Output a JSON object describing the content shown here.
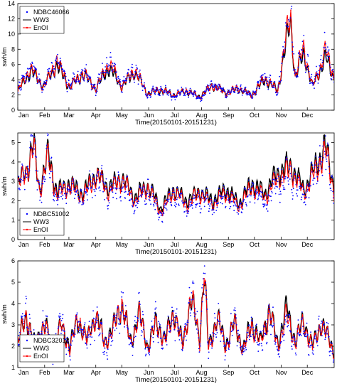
{
  "chart_data": [
    {
      "type": "line",
      "panel": "top",
      "station": "NDBC46066",
      "xlabel": "Time(20150101-20151231)",
      "ylabel": "swh/m",
      "ylim": [
        0,
        14
      ],
      "yticks": [
        0,
        2,
        4,
        6,
        8,
        10,
        12,
        14
      ],
      "x_tick_labels": [
        "Jan",
        "Feb",
        "Mar",
        "Apr",
        "May",
        "Jun",
        "Jul",
        "Aug",
        "Sep",
        "Oct",
        "Nov",
        "Dec"
      ],
      "legend": [
        "NDBC46066",
        "WW3",
        "EnOI"
      ],
      "legend_position": "top-left",
      "series": [
        {
          "name": "NDBC46066",
          "style": "dots",
          "color": "#0000ff",
          "x": [
            0,
            15,
            30,
            45,
            60,
            75,
            90,
            105,
            120,
            135,
            150,
            165,
            180,
            195,
            210,
            225,
            240,
            255,
            270,
            285,
            300,
            310,
            315,
            320,
            330,
            340,
            350,
            355,
            365
          ],
          "y": [
            2.5,
            5.8,
            3.0,
            6.8,
            3.0,
            5.2,
            2.8,
            6.5,
            3.2,
            5.5,
            2.0,
            2.8,
            1.8,
            2.6,
            1.6,
            3.4,
            2.2,
            2.9,
            1.9,
            4.5,
            2.4,
            10.5,
            13.8,
            4.5,
            8.6,
            3.0,
            6.2,
            8.0,
            4.5
          ]
        },
        {
          "name": "WW3",
          "style": "line",
          "color": "#000000",
          "x": [
            0,
            15,
            30,
            45,
            60,
            75,
            90,
            105,
            120,
            135,
            150,
            165,
            180,
            195,
            210,
            225,
            240,
            255,
            270,
            285,
            300,
            310,
            315,
            320,
            330,
            340,
            350,
            355,
            365
          ],
          "y": [
            2.4,
            5.2,
            3.1,
            6.0,
            3.0,
            4.8,
            2.9,
            5.6,
            3.1,
            5.0,
            2.2,
            2.7,
            2.0,
            2.5,
            1.8,
            3.2,
            2.3,
            2.8,
            2.0,
            4.0,
            2.6,
            9.2,
            11.5,
            4.3,
            7.5,
            3.1,
            5.6,
            7.0,
            4.2
          ]
        },
        {
          "name": "EnOI",
          "style": "line-dots",
          "color": "#ff0000",
          "x": [
            0,
            15,
            30,
            45,
            60,
            75,
            90,
            105,
            120,
            135,
            150,
            165,
            180,
            195,
            210,
            225,
            240,
            255,
            270,
            285,
            300,
            310,
            315,
            320,
            330,
            340,
            350,
            355,
            365
          ],
          "y": [
            2.5,
            5.6,
            3.0,
            6.5,
            3.0,
            5.0,
            2.8,
            6.2,
            3.2,
            5.3,
            2.1,
            2.8,
            1.9,
            2.6,
            1.7,
            3.3,
            2.2,
            2.9,
            1.9,
            4.3,
            2.5,
            10.0,
            12.0,
            4.4,
            8.2,
            3.0,
            6.0,
            7.8,
            4.4
          ]
        }
      ]
    },
    {
      "type": "line",
      "panel": "middle",
      "station": "NDBC51002",
      "xlabel": "Time(20150101-20151231)",
      "ylabel": "swh/m",
      "ylim": [
        0,
        5.5
      ],
      "yticks": [
        0,
        1,
        2,
        3,
        4,
        5
      ],
      "x_tick_labels": [
        "Jan",
        "Feb",
        "Mar",
        "Apr",
        "May",
        "Jun",
        "Jul",
        "Aug",
        "Sep",
        "Oct",
        "Nov",
        "Dec"
      ],
      "legend": [
        "NDBC51002",
        "WW3",
        "EnOI"
      ],
      "legend_position": "bottom-left",
      "series": [
        {
          "name": "NDBC51002",
          "style": "dots",
          "color": "#0000ff",
          "x": [
            0,
            12,
            18,
            25,
            35,
            45,
            60,
            75,
            90,
            105,
            120,
            135,
            150,
            165,
            180,
            195,
            210,
            225,
            240,
            255,
            270,
            285,
            300,
            315,
            330,
            345,
            355,
            365
          ],
          "y": [
            2.6,
            3.6,
            5.2,
            2.4,
            4.5,
            2.2,
            2.6,
            2.1,
            3.2,
            2.4,
            3.0,
            1.8,
            2.6,
            1.2,
            2.4,
            1.6,
            2.2,
            1.7,
            2.3,
            1.6,
            2.6,
            2.0,
            3.0,
            3.4,
            2.2,
            3.6,
            4.7,
            2.4
          ]
        },
        {
          "name": "WW3",
          "style": "line",
          "color": "#000000",
          "x": [
            0,
            12,
            18,
            25,
            35,
            45,
            60,
            75,
            90,
            105,
            120,
            135,
            150,
            165,
            180,
            195,
            210,
            225,
            240,
            255,
            270,
            285,
            300,
            315,
            330,
            345,
            355,
            365
          ],
          "y": [
            2.8,
            3.8,
            5.0,
            2.6,
            4.4,
            2.5,
            2.9,
            2.4,
            3.4,
            2.7,
            3.2,
            2.2,
            2.8,
            1.6,
            2.6,
            2.0,
            2.5,
            2.0,
            2.6,
            1.9,
            2.9,
            2.4,
            3.5,
            3.8,
            2.6,
            3.9,
            4.8,
            2.7
          ]
        },
        {
          "name": "EnOI",
          "style": "line-dots",
          "color": "#ff0000",
          "x": [
            0,
            12,
            18,
            25,
            35,
            45,
            60,
            75,
            90,
            105,
            120,
            135,
            150,
            165,
            180,
            195,
            210,
            225,
            240,
            255,
            270,
            285,
            300,
            315,
            330,
            345,
            355,
            365
          ],
          "y": [
            2.7,
            3.7,
            4.8,
            2.5,
            4.2,
            2.3,
            2.8,
            2.2,
            3.3,
            2.5,
            3.1,
            2.0,
            2.7,
            1.4,
            2.5,
            1.8,
            2.4,
            1.8,
            2.4,
            1.7,
            2.7,
            2.2,
            3.2,
            3.6,
            2.4,
            3.7,
            4.6,
            2.5
          ]
        }
      ]
    },
    {
      "type": "line",
      "panel": "bottom",
      "station": "NDBC32012",
      "xlabel": "Time(20150101-20151231)",
      "ylabel": "swh/m",
      "ylim": [
        1,
        6
      ],
      "yticks": [
        1,
        2,
        3,
        4,
        5,
        6
      ],
      "x_tick_labels": [
        "Jan",
        "Feb",
        "Mar",
        "Apr",
        "May",
        "Jun",
        "Jul",
        "Aug",
        "Sep",
        "Oct",
        "Nov",
        "Dec"
      ],
      "legend": [
        "NDBC32012",
        "WW3",
        "EnOI"
      ],
      "legend_position": "bottom-left",
      "series": [
        {
          "name": "NDBC32012",
          "style": "dots",
          "color": "#0000ff",
          "x": [
            0,
            10,
            20,
            30,
            40,
            50,
            60,
            70,
            80,
            90,
            100,
            110,
            120,
            130,
            140,
            150,
            160,
            170,
            180,
            190,
            200,
            210,
            215,
            220,
            230,
            240,
            250,
            260,
            270,
            280,
            290,
            300,
            310,
            320,
            330,
            340,
            350,
            365
          ],
          "y": [
            2.0,
            3.6,
            1.8,
            3.2,
            1.7,
            3.0,
            1.8,
            3.4,
            2.1,
            3.6,
            2.0,
            2.6,
            4.2,
            2.0,
            3.6,
            1.8,
            3.2,
            2.1,
            3.6,
            1.9,
            4.4,
            2.2,
            5.9,
            1.8,
            3.4,
            1.9,
            3.2,
            1.7,
            3.0,
            2.0,
            3.6,
            1.9,
            3.2,
            2.1,
            3.0,
            1.8,
            3.2,
            1.6
          ]
        },
        {
          "name": "WW3",
          "style": "line",
          "color": "#000000",
          "x": [
            0,
            10,
            20,
            30,
            40,
            50,
            60,
            70,
            80,
            90,
            100,
            110,
            120,
            130,
            140,
            150,
            160,
            170,
            180,
            190,
            200,
            210,
            215,
            220,
            230,
            240,
            250,
            260,
            270,
            280,
            290,
            300,
            310,
            320,
            330,
            340,
            350,
            365
          ],
          "y": [
            2.2,
            3.4,
            2.0,
            3.1,
            2.0,
            2.9,
            2.1,
            3.2,
            2.3,
            3.5,
            2.2,
            2.8,
            4.0,
            2.2,
            3.5,
            2.0,
            3.1,
            2.3,
            3.7,
            2.1,
            4.2,
            2.4,
            5.4,
            2.0,
            3.3,
            2.1,
            3.1,
            1.9,
            3.1,
            2.2,
            3.7,
            2.1,
            3.8,
            2.3,
            3.2,
            2.0,
            3.1,
            1.8
          ]
        },
        {
          "name": "EnOI",
          "style": "line-dots",
          "color": "#ff0000",
          "x": [
            0,
            10,
            20,
            30,
            40,
            50,
            60,
            70,
            80,
            90,
            100,
            110,
            120,
            130,
            140,
            150,
            160,
            170,
            180,
            190,
            200,
            210,
            215,
            220,
            230,
            240,
            250,
            260,
            270,
            280,
            290,
            300,
            310,
            320,
            330,
            340,
            350,
            365
          ],
          "y": [
            2.1,
            3.5,
            1.9,
            3.1,
            1.8,
            2.9,
            1.9,
            3.3,
            2.2,
            3.5,
            2.1,
            2.7,
            4.1,
            2.1,
            3.5,
            1.9,
            3.1,
            2.2,
            3.6,
            2.0,
            4.3,
            2.3,
            5.6,
            1.9,
            3.3,
            2.0,
            3.1,
            1.8,
            3.0,
            2.1,
            3.6,
            2.0,
            3.4,
            2.2,
            3.1,
            1.9,
            3.1,
            1.7
          ]
        }
      ]
    }
  ]
}
